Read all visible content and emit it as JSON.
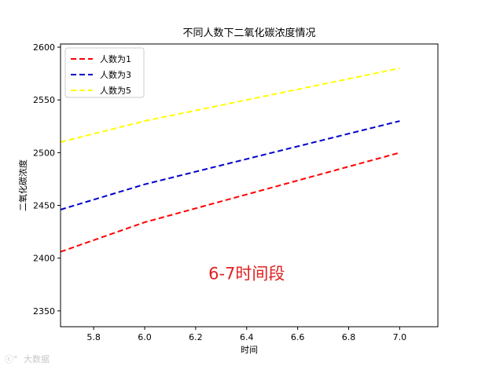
{
  "chart_data": {
    "type": "line",
    "title": "不同人数下二氧化碳浓度情况",
    "xlabel": "时间",
    "ylabel": "二氧化碳浓度",
    "xlim": [
      5.67,
      7.15
    ],
    "ylim": [
      2335,
      2603
    ],
    "xticks": [
      5.8,
      6.0,
      6.2,
      6.4,
      6.6,
      6.8,
      7.0
    ],
    "xtick_labels": [
      "5.8",
      "6.0",
      "6.2",
      "6.4",
      "6.6",
      "6.8",
      "7.0"
    ],
    "yticks": [
      2350,
      2400,
      2450,
      2500,
      2550,
      2600
    ],
    "ytick_labels": [
      "2350",
      "2400",
      "2450",
      "2500",
      "2550",
      "2600"
    ],
    "grid": false,
    "legend_position": "top-left",
    "series": [
      {
        "name": "人数为1",
        "color": "#ff0000",
        "style": "dashed",
        "x": [
          5.67,
          6.0,
          7.0
        ],
        "y": [
          2406,
          2434,
          2500
        ]
      },
      {
        "name": "人数为3",
        "color": "#0000cc",
        "style": "dashed",
        "x": [
          5.67,
          6.0,
          7.0
        ],
        "y": [
          2446,
          2470,
          2530
        ]
      },
      {
        "name": "人数为5",
        "color": "#ffff00",
        "style": "dashed",
        "x": [
          5.67,
          6.0,
          7.0
        ],
        "y": [
          2510,
          2530,
          2580
        ]
      }
    ],
    "annotation": {
      "text": "6-7时间段",
      "color": "#e02020",
      "x": 6.4,
      "y": 2380
    }
  },
  "watermark": {
    "text": "大数据"
  }
}
